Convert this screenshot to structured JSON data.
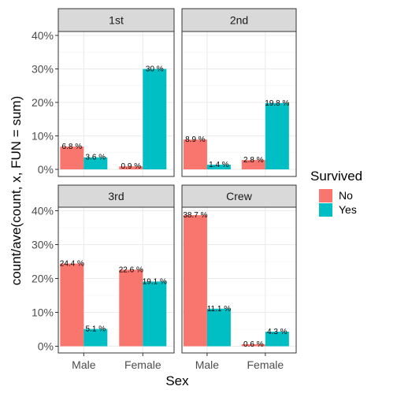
{
  "chart_data": {
    "type": "bar",
    "facet_by": "Class",
    "panels": [
      "1st",
      "2nd",
      "3rd",
      "Crew"
    ],
    "categories": [
      "Male",
      "Female"
    ],
    "xlabel": "Sex",
    "ylabel": "count/ave(count, x, FUN = sum)",
    "ylim": [
      0,
      0.4
    ],
    "yticks": [
      "0%",
      "10%",
      "20%",
      "30%",
      "40%"
    ],
    "legend": {
      "title": "Survived",
      "position": "right",
      "entries": [
        {
          "name": "No",
          "color": "#F8766D"
        },
        {
          "name": "Yes",
          "color": "#00BFC4"
        }
      ]
    },
    "series": [
      {
        "name": "No",
        "color": "#F8766D",
        "values": {
          "1st": [
            0.068,
            0.009
          ],
          "2nd": [
            0.089,
            0.028
          ],
          "3rd": [
            0.244,
            0.226
          ],
          "Crew": [
            0.387,
            0.006
          ]
        },
        "labels": {
          "1st": [
            "6.8 %",
            "0.9 %"
          ],
          "2nd": [
            "8.9 %",
            "2.8 %"
          ],
          "3rd": [
            "24.4 %",
            "22.6 %"
          ],
          "Crew": [
            "38.7 %",
            "0.6 %"
          ]
        }
      },
      {
        "name": "Yes",
        "color": "#00BFC4",
        "values": {
          "1st": [
            0.036,
            0.3
          ],
          "2nd": [
            0.014,
            0.198
          ],
          "3rd": [
            0.051,
            0.191
          ],
          "Crew": [
            0.111,
            0.043
          ]
        },
        "labels": {
          "1st": [
            "3.6 %",
            "30 %"
          ],
          "2nd": [
            "1.4 %",
            "19.8 %"
          ],
          "3rd": [
            "5.1 %",
            "19.1 %"
          ],
          "Crew": [
            "11.1 %",
            "4.3 %"
          ]
        }
      }
    ],
    "grid": true,
    "theme": "bw"
  }
}
